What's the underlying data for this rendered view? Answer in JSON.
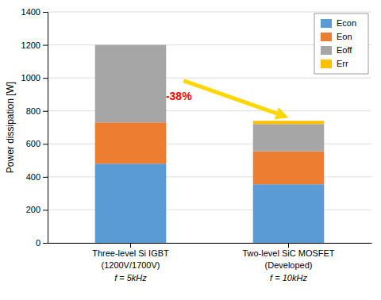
{
  "chart_data": {
    "type": "bar",
    "stacked": true,
    "categories": [
      "Three-level Si IGBT",
      "Two-level SiC MOSFET"
    ],
    "categories_line2": [
      "(1200V/1700V)",
      "(Developed)"
    ],
    "freq_labels": [
      "f = 5kHz",
      "f = 10kHz"
    ],
    "series": [
      {
        "name": "Econ",
        "color": "#5B9BD5",
        "values": [
          480,
          355
        ]
      },
      {
        "name": "Eon",
        "color": "#ED7D31",
        "values": [
          250,
          200
        ]
      },
      {
        "name": "Eoff",
        "color": "#A6A6A6",
        "values": [
          470,
          165
        ]
      },
      {
        "name": "Err",
        "color": "#FFC000",
        "values": [
          0,
          20
        ]
      }
    ],
    "ylabel": "Power dissipation [W]",
    "ylim": [
      0,
      1400
    ],
    "yticks": [
      0,
      200,
      400,
      600,
      800,
      1000,
      1200,
      1400
    ],
    "grid": true,
    "legend": "upper right",
    "annotations": [
      {
        "text": "-38%",
        "color": "red"
      }
    ]
  }
}
